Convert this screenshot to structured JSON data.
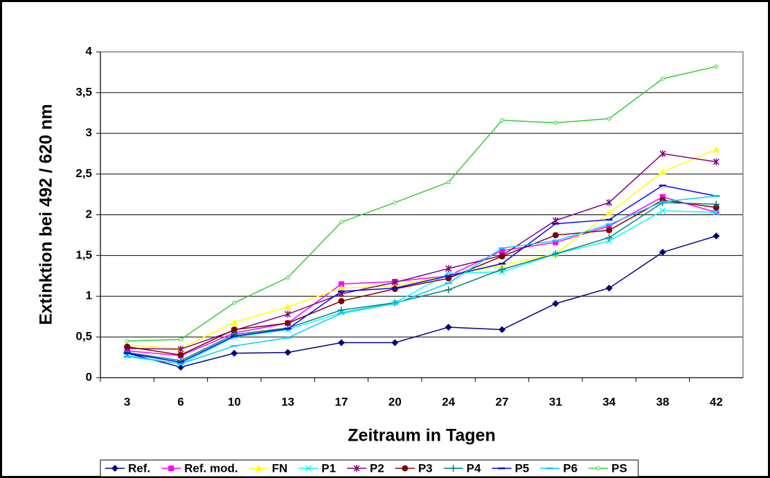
{
  "chart_data": {
    "type": "line",
    "xlabel": "Zeitraum in Tagen",
    "ylabel": "Extinktion bei 492 / 620 nm",
    "categories": [
      "3",
      "6",
      "10",
      "13",
      "17",
      "20",
      "24",
      "27",
      "31",
      "34",
      "38",
      "42"
    ],
    "ylim": [
      0,
      4
    ],
    "yticks": [
      0,
      {
        "value": 0.5,
        "label": "0,5"
      },
      1,
      {
        "value": 1.5,
        "label": "1,5"
      },
      2,
      {
        "value": 2.5,
        "label": "2,5"
      },
      3,
      {
        "value": 3.5,
        "label": "3,5"
      },
      4
    ],
    "grid": true,
    "legend": "bottom",
    "series": [
      {
        "name": "Ref.",
        "color": "#000080",
        "marker": "diamond",
        "values": [
          0.3,
          0.13,
          0.3,
          0.31,
          0.43,
          0.43,
          0.62,
          0.59,
          0.91,
          1.1,
          1.54,
          1.74
        ]
      },
      {
        "name": "Ref. mod.",
        "color": "#ff00ff",
        "marker": "square",
        "values": [
          0.33,
          0.27,
          0.55,
          0.67,
          1.15,
          1.18,
          1.25,
          1.56,
          1.66,
          1.86,
          2.22,
          2.03
        ]
      },
      {
        "name": "FN",
        "color": "#ffff00",
        "marker": "triangle",
        "values": [
          0.4,
          0.36,
          0.68,
          0.87,
          1.1,
          1.13,
          1.25,
          1.38,
          1.52,
          2.02,
          2.53,
          2.8
        ]
      },
      {
        "name": "P1",
        "color": "#00ffff",
        "marker": "x",
        "values": [
          0.27,
          0.17,
          0.5,
          0.59,
          0.8,
          0.92,
          1.28,
          1.3,
          1.52,
          1.68,
          2.05,
          2.03
        ]
      },
      {
        "name": "P2",
        "color": "#800080",
        "marker": "star",
        "values": [
          0.36,
          0.35,
          0.58,
          0.78,
          1.03,
          1.17,
          1.34,
          1.5,
          1.93,
          2.15,
          2.75,
          2.65
        ]
      },
      {
        "name": "P3",
        "color": "#800000",
        "marker": "circle",
        "values": [
          0.38,
          0.28,
          0.59,
          0.67,
          0.94,
          1.09,
          1.22,
          1.49,
          1.75,
          1.81,
          2.18,
          2.09
        ]
      },
      {
        "name": "P4",
        "color": "#008080",
        "marker": "plus",
        "values": [
          0.31,
          0.21,
          0.53,
          0.61,
          0.83,
          0.92,
          1.08,
          1.33,
          1.52,
          1.72,
          2.15,
          2.13
        ]
      },
      {
        "name": "P5",
        "color": "#0000ff",
        "marker": "dash",
        "values": [
          0.3,
          0.19,
          0.51,
          0.6,
          1.06,
          1.1,
          1.25,
          1.4,
          1.89,
          1.94,
          2.36,
          2.23
        ]
      },
      {
        "name": "P6",
        "color": "#00ccff",
        "marker": "dash",
        "values": [
          0.26,
          0.17,
          0.39,
          0.49,
          0.79,
          0.91,
          1.16,
          1.59,
          1.68,
          1.88,
          2.16,
          2.23
        ]
      },
      {
        "name": "PS",
        "color": "#33cc33",
        "marker": "dot",
        "values": [
          0.45,
          0.47,
          0.92,
          1.23,
          1.91,
          2.15,
          2.4,
          3.16,
          3.13,
          3.18,
          3.67,
          3.82
        ]
      }
    ]
  }
}
